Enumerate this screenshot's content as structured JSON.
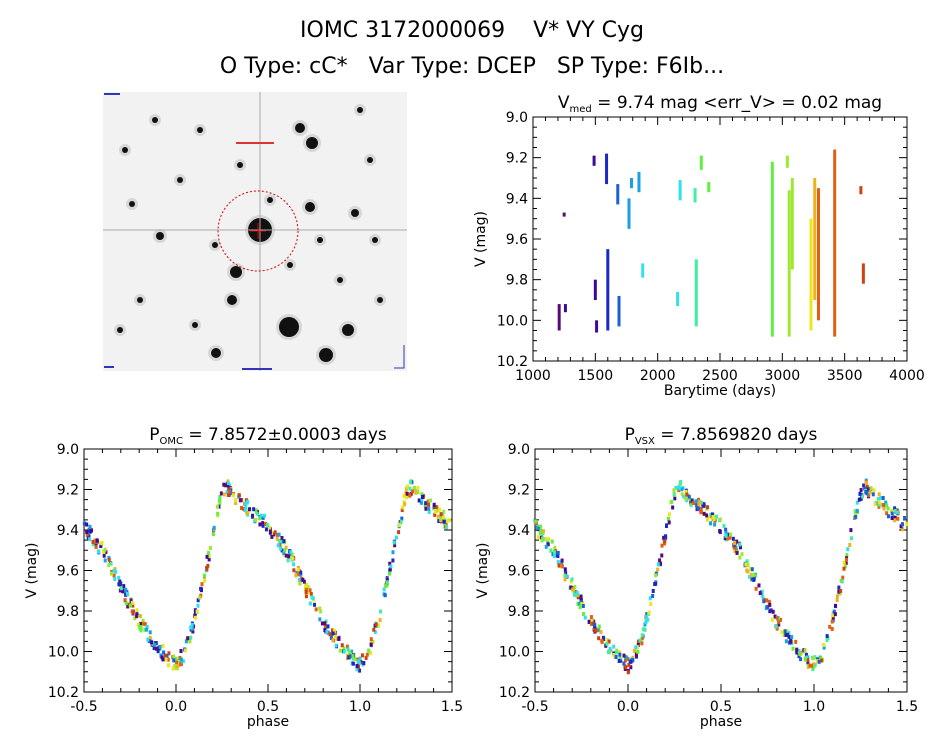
{
  "header": {
    "title": "IOMC 3172000069    V* VY Cyg",
    "subtitle": "O Type: cC*   Var Type: DCEP   SP Type: F6Ib..."
  },
  "thumbnail": {
    "corner_label": "",
    "target_label": "",
    "bottom_label": ""
  },
  "colors": {
    "seasons": [
      "#5a0a78",
      "#3a0a9a",
      "#1a28c8",
      "#1a60d8",
      "#1aa0e8",
      "#30e0f0",
      "#40f0a0",
      "#60f040",
      "#a0e830",
      "#e8e820",
      "#f0b020",
      "#e06010",
      "#d04010"
    ]
  },
  "chart_data": [
    {
      "type": "scatter",
      "title": "V_med = 9.74 mag <err_V> = 0.02 mag",
      "title_main": "V",
      "title_sub": "med",
      "title_rest": " = 9.74 mag <err_V> = 0.02 mag",
      "xlabel": "Barytime (days)",
      "ylabel": "V (mag)",
      "xlim": [
        1000,
        4000
      ],
      "ylim": [
        10.2,
        9.0
      ],
      "y_inverted": true,
      "xticks": [
        1000,
        1500,
        2000,
        2500,
        3000,
        3500,
        4000
      ],
      "yticks": [
        9.0,
        9.2,
        9.4,
        9.6,
        9.8,
        10.0,
        10.2
      ],
      "xtick_labels": [
        "1000",
        "1500",
        "2000",
        "2500",
        "3000",
        "3500",
        "4000"
      ],
      "ytick_labels": [
        "9.0",
        "9.2",
        "9.4",
        "9.6",
        "9.8",
        "10.0",
        "10.2"
      ],
      "grid": false,
      "groups": [
        {
          "x": 1210,
          "y": [
            9.92,
            10.05
          ],
          "c": 0
        },
        {
          "x": 1250,
          "y": [
            9.47,
            9.49
          ],
          "c": 0
        },
        {
          "x": 1260,
          "y": [
            9.92,
            9.96
          ],
          "c": 1
        },
        {
          "x": 1490,
          "y": [
            9.19,
            9.24
          ],
          "c": 1
        },
        {
          "x": 1500,
          "y": [
            9.8,
            9.9
          ],
          "c": 1
        },
        {
          "x": 1510,
          "y": [
            10.0,
            10.06
          ],
          "c": 1
        },
        {
          "x": 1590,
          "y": [
            9.18,
            9.33
          ],
          "c": 2
        },
        {
          "x": 1600,
          "y": [
            9.65,
            10.05
          ],
          "c": 2
        },
        {
          "x": 1680,
          "y": [
            9.33,
            9.43
          ],
          "c": 3
        },
        {
          "x": 1690,
          "y": [
            9.88,
            10.03
          ],
          "c": 3
        },
        {
          "x": 1770,
          "y": [
            9.4,
            9.55
          ],
          "c": 4
        },
        {
          "x": 1790,
          "y": [
            9.3,
            9.35
          ],
          "c": 4
        },
        {
          "x": 1850,
          "y": [
            9.27,
            9.37
          ],
          "c": 4
        },
        {
          "x": 1880,
          "y": [
            9.72,
            9.79
          ],
          "c": 5
        },
        {
          "x": 2160,
          "y": [
            9.86,
            9.93
          ],
          "c": 5
        },
        {
          "x": 2180,
          "y": [
            9.31,
            9.41
          ],
          "c": 5
        },
        {
          "x": 2300,
          "y": [
            9.35,
            9.42
          ],
          "c": 6
        },
        {
          "x": 2310,
          "y": [
            9.7,
            10.03
          ],
          "c": 6
        },
        {
          "x": 2350,
          "y": [
            9.19,
            9.26
          ],
          "c": 7
        },
        {
          "x": 2410,
          "y": [
            9.32,
            9.37
          ],
          "c": 7
        },
        {
          "x": 2920,
          "y": [
            9.22,
            10.08
          ],
          "c": 7
        },
        {
          "x": 3040,
          "y": [
            9.19,
            9.25
          ],
          "c": 8
        },
        {
          "x": 3055,
          "y": [
            9.36,
            10.08
          ],
          "c": 8
        },
        {
          "x": 3080,
          "y": [
            9.3,
            9.75
          ],
          "c": 8
        },
        {
          "x": 3230,
          "y": [
            9.5,
            10.05
          ],
          "c": 9
        },
        {
          "x": 3260,
          "y": [
            9.3,
            9.9
          ],
          "c": 10
        },
        {
          "x": 3290,
          "y": [
            9.35,
            10.0
          ],
          "c": 11
        },
        {
          "x": 3420,
          "y": [
            9.16,
            10.08
          ],
          "c": 11
        },
        {
          "x": 3630,
          "y": [
            9.34,
            9.38
          ],
          "c": 12
        },
        {
          "x": 3650,
          "y": [
            9.72,
            9.82
          ],
          "c": 12
        }
      ]
    },
    {
      "type": "scatter",
      "title": "P_OMC = 7.8572±0.0003 days",
      "title_main": "P",
      "title_sub": "OMC",
      "title_rest": " = 7.8572±0.0003 days",
      "xlabel": "phase",
      "ylabel": "V (mag)",
      "xlim": [
        -0.5,
        1.5
      ],
      "ylim": [
        10.2,
        9.0
      ],
      "y_inverted": true,
      "xticks": [
        -0.5,
        0.0,
        0.5,
        1.0,
        1.5
      ],
      "yticks": [
        9.0,
        9.2,
        9.4,
        9.6,
        9.8,
        10.0,
        10.2
      ],
      "xtick_labels": [
        "-0.5",
        "0.0",
        "0.5",
        "1.0",
        "1.5"
      ],
      "ytick_labels": [
        "9.0",
        "9.2",
        "9.4",
        "9.6",
        "9.8",
        "10.0",
        "10.2"
      ],
      "grid": false,
      "light_curve": {
        "phase": [
          0.0,
          0.05,
          0.1,
          0.15,
          0.2,
          0.25,
          0.28,
          0.32,
          0.4,
          0.5,
          0.6,
          0.7,
          0.8,
          0.9,
          1.0
        ],
        "mag": [
          10.07,
          10.0,
          9.85,
          9.65,
          9.42,
          9.22,
          9.19,
          9.23,
          9.3,
          9.38,
          9.5,
          9.68,
          9.85,
          9.98,
          10.07
        ]
      }
    },
    {
      "type": "scatter",
      "title": "P_VSX = 7.8569820 days",
      "title_main": "P",
      "title_sub": "VSX",
      "title_rest": " = 7.8569820 days",
      "xlabel": "phase",
      "ylabel": "V (mag)",
      "xlim": [
        -0.5,
        1.5
      ],
      "ylim": [
        10.2,
        9.0
      ],
      "y_inverted": true,
      "xticks": [
        -0.5,
        0.0,
        0.5,
        1.0,
        1.5
      ],
      "yticks": [
        9.0,
        9.2,
        9.4,
        9.6,
        9.8,
        10.0,
        10.2
      ],
      "xtick_labels": [
        "-0.5",
        "0.0",
        "0.5",
        "1.0",
        "1.5"
      ],
      "ytick_labels": [
        "9.0",
        "9.2",
        "9.4",
        "9.6",
        "9.8",
        "10.0",
        "10.2"
      ],
      "grid": false,
      "light_curve": {
        "phase": [
          0.0,
          0.05,
          0.1,
          0.15,
          0.2,
          0.25,
          0.28,
          0.32,
          0.4,
          0.5,
          0.6,
          0.7,
          0.8,
          0.9,
          1.0
        ],
        "mag": [
          10.07,
          10.0,
          9.85,
          9.65,
          9.42,
          9.22,
          9.19,
          9.23,
          9.3,
          9.38,
          9.5,
          9.68,
          9.85,
          9.98,
          10.07
        ]
      }
    }
  ]
}
